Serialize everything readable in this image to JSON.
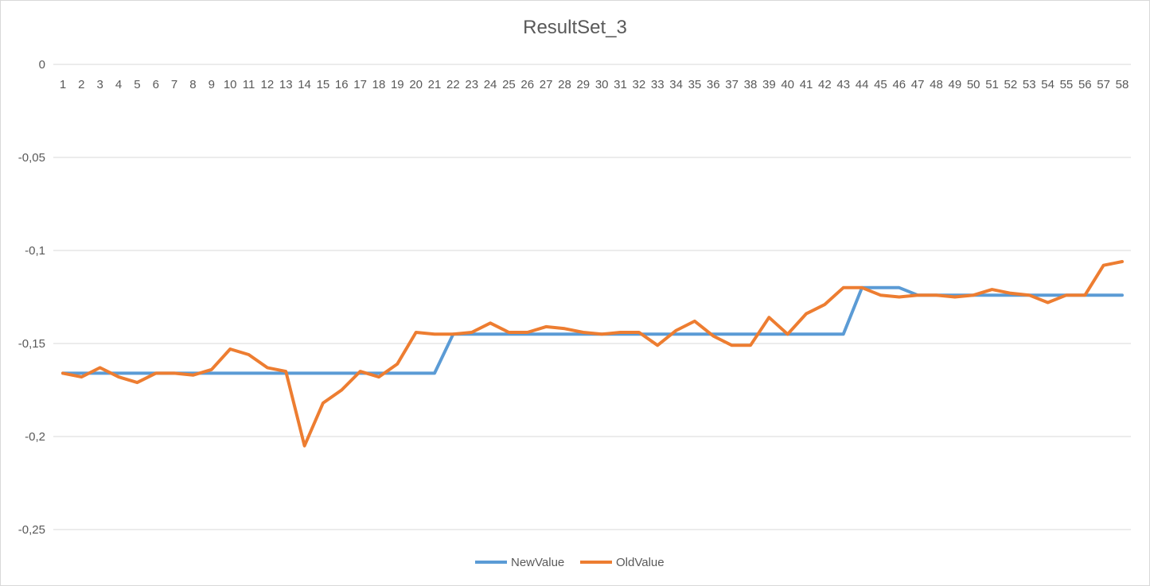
{
  "chart_data": {
    "type": "line",
    "title": "ResultSet_3",
    "xlabel": "",
    "ylabel": "",
    "ylim": [
      -0.25,
      0
    ],
    "yticks": [
      {
        "value": 0,
        "label": "0"
      },
      {
        "value": -0.05,
        "label": "-0,05"
      },
      {
        "value": -0.1,
        "label": "-0,1"
      },
      {
        "value": -0.15,
        "label": "-0,15"
      },
      {
        "value": -0.2,
        "label": "-0,2"
      },
      {
        "value": -0.25,
        "label": "-0,25"
      }
    ],
    "grid": true,
    "legend_position": "bottom",
    "categories": [
      "1",
      "2",
      "3",
      "4",
      "5",
      "6",
      "7",
      "8",
      "9",
      "10",
      "11",
      "12",
      "13",
      "14",
      "15",
      "16",
      "17",
      "18",
      "19",
      "20",
      "21",
      "22",
      "23",
      "24",
      "25",
      "26",
      "27",
      "28",
      "29",
      "30",
      "31",
      "32",
      "33",
      "34",
      "35",
      "36",
      "37",
      "38",
      "39",
      "40",
      "41",
      "42",
      "43",
      "44",
      "45",
      "46",
      "47",
      "48",
      "49",
      "50",
      "51",
      "52",
      "53",
      "54",
      "55",
      "56",
      "57",
      "58"
    ],
    "series": [
      {
        "name": "NewValue",
        "color": "#5b9bd5",
        "values": [
          -0.166,
          -0.166,
          -0.166,
          -0.166,
          -0.166,
          -0.166,
          -0.166,
          -0.166,
          -0.166,
          -0.166,
          -0.166,
          -0.166,
          -0.166,
          -0.166,
          -0.166,
          -0.166,
          -0.166,
          -0.166,
          -0.166,
          -0.166,
          -0.166,
          -0.145,
          -0.145,
          -0.145,
          -0.145,
          -0.145,
          -0.145,
          -0.145,
          -0.145,
          -0.145,
          -0.145,
          -0.145,
          -0.145,
          -0.145,
          -0.145,
          -0.145,
          -0.145,
          -0.145,
          -0.145,
          -0.145,
          -0.145,
          -0.145,
          -0.145,
          -0.12,
          -0.12,
          -0.12,
          -0.124,
          -0.124,
          -0.124,
          -0.124,
          -0.124,
          -0.124,
          -0.124,
          -0.124,
          -0.124,
          -0.124,
          -0.124,
          -0.124
        ]
      },
      {
        "name": "OldValue",
        "color": "#ed7d31",
        "values": [
          -0.166,
          -0.168,
          -0.163,
          -0.168,
          -0.171,
          -0.166,
          -0.166,
          -0.167,
          -0.164,
          -0.153,
          -0.156,
          -0.163,
          -0.165,
          -0.205,
          -0.182,
          -0.175,
          -0.165,
          -0.168,
          -0.161,
          -0.144,
          -0.145,
          -0.145,
          -0.144,
          -0.139,
          -0.144,
          -0.144,
          -0.141,
          -0.142,
          -0.144,
          -0.145,
          -0.144,
          -0.144,
          -0.151,
          -0.143,
          -0.138,
          -0.146,
          -0.151,
          -0.151,
          -0.136,
          -0.145,
          -0.134,
          -0.129,
          -0.12,
          -0.12,
          -0.124,
          -0.125,
          -0.124,
          -0.124,
          -0.125,
          -0.124,
          -0.121,
          -0.123,
          -0.124,
          -0.128,
          -0.124,
          -0.124,
          -0.108,
          -0.106
        ]
      }
    ]
  },
  "colors": {
    "grid": "#d9d9d9",
    "text": "#595959",
    "border": "#d9d9d9"
  }
}
